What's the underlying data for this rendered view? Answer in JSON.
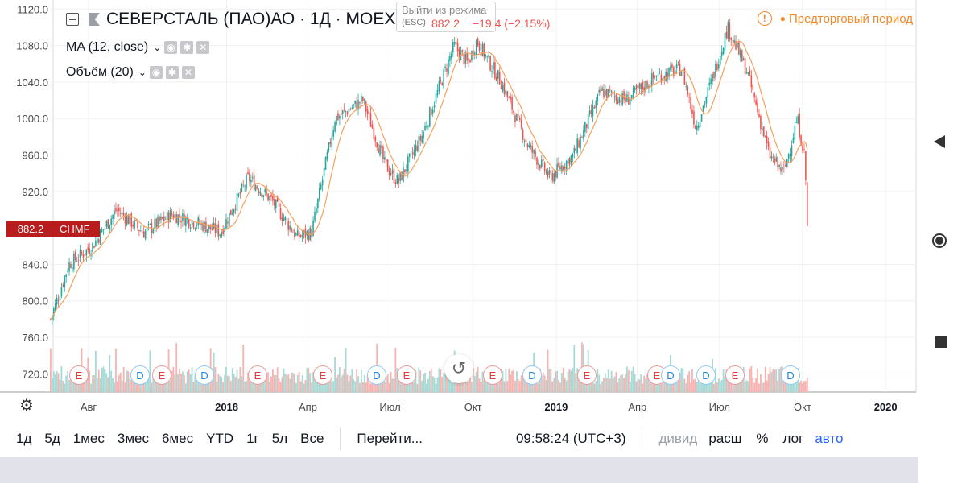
{
  "header": {
    "symbol_title": "СЕВЕРСТАЛЬ (ПАО)АО · 1Д · MOEX",
    "tooltip_line1": "Выйти из режима",
    "tooltip_line2": "(ESC)",
    "last_price": "882.2",
    "change": "−19.4 (−2.15%)",
    "premarket_label": "Предторговый период"
  },
  "indicators": [
    {
      "label": "MA (12, close)"
    },
    {
      "label": "Объём (20)"
    }
  ],
  "price_tag": {
    "value": "882.2",
    "symbol": "CHMF"
  },
  "colors": {
    "up": "#26a69a",
    "down": "#ef5350",
    "ma": "#f4a15d",
    "price_tag": "#b91c1c",
    "accent": "#2962ff",
    "premarket": "#f0892b"
  },
  "chart_data": {
    "type": "candlestick",
    "ylim": [
      700,
      1130
    ],
    "yticks": [
      "1120.0",
      "1080.0",
      "1040.0",
      "1000.0",
      "960.0",
      "920.0",
      "840.0",
      "800.0",
      "760.0",
      "720.0"
    ],
    "xticks": [
      {
        "label": "Авг",
        "year": false
      },
      {
        "label": "2018",
        "year": true
      },
      {
        "label": "Апр",
        "year": false
      },
      {
        "label": "Июл",
        "year": false
      },
      {
        "label": "Окт",
        "year": false
      },
      {
        "label": "2019",
        "year": true
      },
      {
        "label": "Апр",
        "year": false
      },
      {
        "label": "Июл",
        "year": false
      },
      {
        "label": "Окт",
        "year": false
      },
      {
        "label": "2020",
        "year": true
      }
    ],
    "close_path": [
      {
        "date": "2017-06-20",
        "close": 780
      },
      {
        "date": "2017-07-10",
        "close": 840
      },
      {
        "date": "2017-08-05",
        "close": 860
      },
      {
        "date": "2017-09-01",
        "close": 900
      },
      {
        "date": "2017-10-01",
        "close": 875
      },
      {
        "date": "2017-11-01",
        "close": 895
      },
      {
        "date": "2017-12-01",
        "close": 885
      },
      {
        "date": "2017-12-25",
        "close": 875
      },
      {
        "date": "2018-01-25",
        "close": 935
      },
      {
        "date": "2018-02-20",
        "close": 910
      },
      {
        "date": "2018-03-20",
        "close": 870
      },
      {
        "date": "2018-04-05",
        "close": 875
      },
      {
        "date": "2018-05-01",
        "close": 1000
      },
      {
        "date": "2018-06-01",
        "close": 1020
      },
      {
        "date": "2018-06-25",
        "close": 950
      },
      {
        "date": "2018-07-10",
        "close": 930
      },
      {
        "date": "2018-08-05",
        "close": 980
      },
      {
        "date": "2018-09-10",
        "close": 1080
      },
      {
        "date": "2018-09-25",
        "close": 1060
      },
      {
        "date": "2018-10-05",
        "close": 1085
      },
      {
        "date": "2018-11-01",
        "close": 1040
      },
      {
        "date": "2018-12-01",
        "close": 970
      },
      {
        "date": "2018-12-25",
        "close": 935
      },
      {
        "date": "2019-01-20",
        "close": 960
      },
      {
        "date": "2019-02-20",
        "close": 1030
      },
      {
        "date": "2019-03-20",
        "close": 1020
      },
      {
        "date": "2019-04-20",
        "close": 1045
      },
      {
        "date": "2019-05-20",
        "close": 1055
      },
      {
        "date": "2019-06-05",
        "close": 990
      },
      {
        "date": "2019-06-25",
        "close": 1050
      },
      {
        "date": "2019-07-10",
        "close": 1100
      },
      {
        "date": "2019-08-01",
        "close": 1050
      },
      {
        "date": "2019-08-25",
        "close": 960
      },
      {
        "date": "2019-09-10",
        "close": 940
      },
      {
        "date": "2019-09-25",
        "close": 1000
      },
      {
        "date": "2019-10-03",
        "close": 960
      },
      {
        "date": "2019-10-07",
        "close": 882.2
      }
    ],
    "series": [
      {
        "name": "MA (12, close)",
        "type": "line"
      },
      {
        "name": "Объём (20)",
        "type": "volume"
      }
    ],
    "events": [
      "E",
      "D",
      "E",
      "D",
      "E",
      "E",
      "D",
      "E",
      "E",
      "D",
      "E",
      "E",
      "D",
      "D",
      "E",
      "D"
    ],
    "grid": true
  },
  "bottombar": {
    "ranges": [
      "1д",
      "5д",
      "1мес",
      "3мес",
      "6мес",
      "YTD",
      "1г",
      "5л",
      "Все"
    ],
    "goto": "Перейти...",
    "time": "09:58:24 (UTC+3)",
    "toggles": {
      "divid": "дивид",
      "ext": "расш",
      "pct": "%",
      "log": "лог",
      "auto": "авто"
    }
  }
}
